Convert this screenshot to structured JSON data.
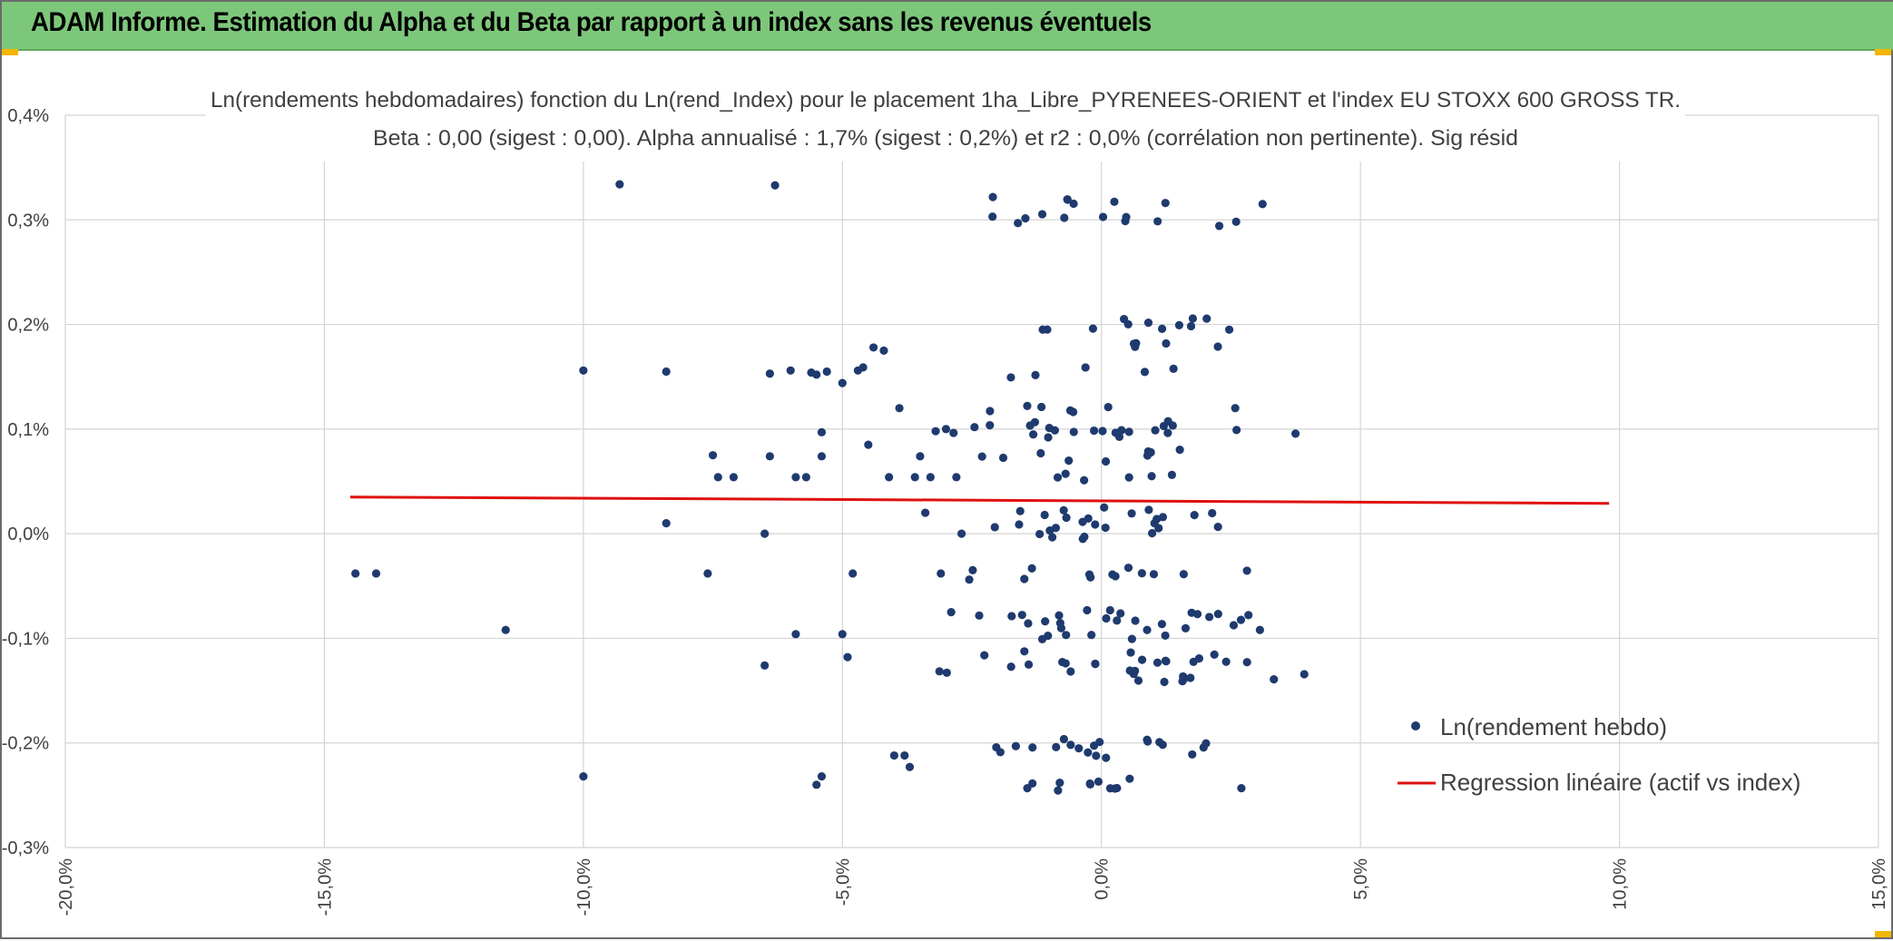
{
  "header": {
    "title": "ADAM Informe. Estimation du Alpha et du Beta par rapport à un index sans les revenus éventuels"
  },
  "colors": {
    "header_bg": "#7dc77b",
    "points": "#1f3a6e",
    "regression": "#e01010",
    "grid": "#d4d4d4",
    "handles": "#f2b705"
  },
  "chart_data": {
    "type": "scatter",
    "title": "Ln(rendements hebdomadaires) fonction du Ln(rend_Index) pour le placement 1ha_Libre_PYRENEES-ORIENT et l'index EU STOXX 600 GROSS TR.",
    "subtitle": "Beta : 0,00 (sigest : 0,00). Alpha annualisé : 1,7% (sigest : 0,2%) et r2 : 0,0% (corrélation non pertinente). Sig résid",
    "xlabel": "",
    "ylabel": "",
    "xlim": [
      -20,
      15
    ],
    "ylim": [
      -0.3,
      0.4
    ],
    "x_ticks": [
      "-20,0%",
      "-15,0%",
      "-10,0%",
      "-5,0%",
      "0,0%",
      "5,0%",
      "10,0%",
      "15,0%"
    ],
    "y_ticks": [
      "-0,3%",
      "-0,2%",
      "-0,1%",
      "0,0%",
      "0,1%",
      "0,2%",
      "0,3%",
      "0,4%"
    ],
    "grid": true,
    "legend_position": "bottom-right",
    "series": [
      {
        "name": "Ln(rendement hebdo)",
        "kind": "scatter",
        "points": [
          [
            -14.4,
            -0.038
          ],
          [
            -14.0,
            -0.038
          ],
          [
            -11.5,
            -0.092
          ],
          [
            -10.0,
            0.156
          ],
          [
            -10.0,
            -0.232
          ],
          [
            -9.3,
            0.334
          ],
          [
            -8.4,
            0.155
          ],
          [
            -8.4,
            0.01
          ],
          [
            -7.6,
            -0.038
          ],
          [
            -7.5,
            0.075
          ],
          [
            -7.4,
            0.054
          ],
          [
            -7.1,
            0.054
          ],
          [
            -6.5,
            -0.126
          ],
          [
            -6.5,
            0.0
          ],
          [
            -6.4,
            0.153
          ],
          [
            -6.4,
            0.074
          ],
          [
            -6.3,
            0.333
          ],
          [
            -6.0,
            0.156
          ],
          [
            -5.9,
            0.054
          ],
          [
            -5.9,
            -0.096
          ],
          [
            -5.7,
            0.054
          ],
          [
            -5.6,
            0.154
          ],
          [
            -5.5,
            0.152
          ],
          [
            -5.5,
            -0.24
          ],
          [
            -5.4,
            -0.232
          ],
          [
            -5.4,
            0.097
          ],
          [
            -5.4,
            0.074
          ],
          [
            -5.3,
            0.155
          ],
          [
            -5.0,
            0.144
          ],
          [
            -5.0,
            -0.096
          ],
          [
            -4.9,
            -0.118
          ],
          [
            -4.8,
            -0.038
          ],
          [
            -4.7,
            0.156
          ],
          [
            -4.6,
            0.159
          ],
          [
            -4.5,
            0.085
          ],
          [
            -4.4,
            0.178
          ],
          [
            -4.2,
            0.175
          ],
          [
            -4.1,
            0.054
          ],
          [
            -4.0,
            -0.212
          ],
          [
            -3.9,
            0.12
          ],
          [
            -3.8,
            -0.212
          ],
          [
            -3.7,
            -0.223
          ],
          [
            -3.6,
            0.054
          ],
          [
            -3.5,
            0.074
          ],
          [
            -3.4,
            0.02
          ],
          [
            -3.3,
            0.054
          ],
          [
            -3.2,
            0.098
          ],
          [
            -3.1,
            -0.038
          ],
          [
            -3.0,
            0.1
          ],
          [
            -2.9,
            -0.075
          ],
          [
            -2.8,
            0.054
          ],
          [
            -2.7,
            0.0
          ]
        ],
        "cluster_fill": [
          {
            "count": 220,
            "x_range": [
              -3.8,
              4.6
            ],
            "y_levels": [
              0.0,
              0.01,
              0.02,
              0.054,
              0.075,
              0.098,
              0.102,
              0.122,
              0.155,
              0.178,
              0.2,
              -0.038,
              -0.078,
              -0.082,
              -0.096,
              -0.118,
              -0.125,
              -0.136,
              -0.2,
              -0.21,
              -0.24,
              0.3,
              0.32
            ],
            "seed": 7
          }
        ]
      },
      {
        "name": "Regression linéaire (actif vs index)",
        "kind": "line",
        "points": [
          [
            -14.5,
            0.035
          ],
          [
            9.8,
            0.029
          ]
        ]
      }
    ]
  },
  "legend": {
    "scatter_label": "Ln(rendement hebdo)",
    "line_label": "Regression linéaire (actif vs index)"
  }
}
